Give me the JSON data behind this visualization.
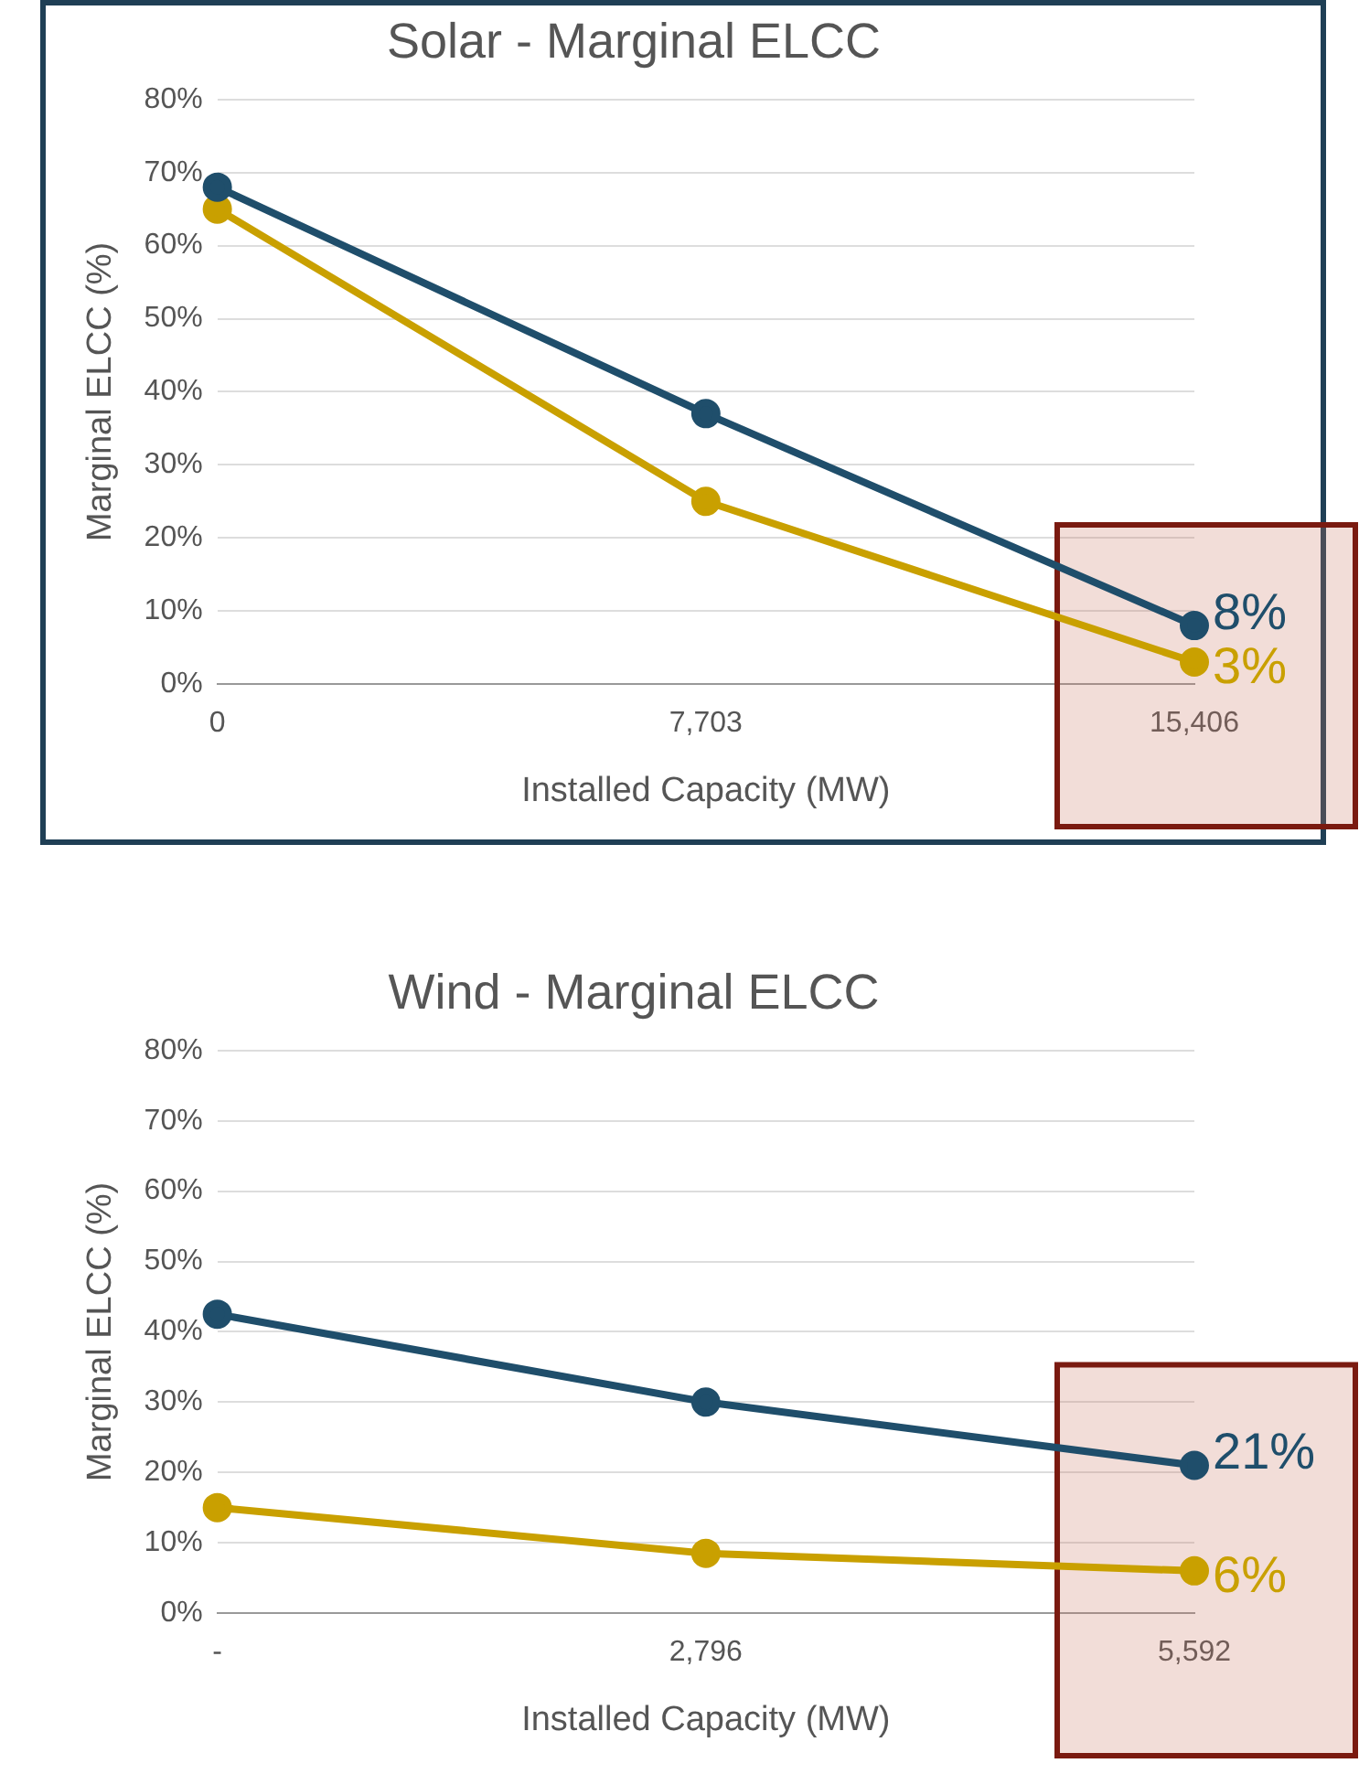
{
  "chart_data": [
    {
      "type": "line",
      "title": "Solar - Marginal ELCC",
      "xlabel": "Installed Capacity (MW)",
      "ylabel": "Marginal ELCC (%)",
      "categories": [
        "0",
        "7,703",
        "15,406"
      ],
      "series": [
        {
          "color": "#1f4e6b",
          "values": [
            68,
            37,
            8
          ],
          "value_labels": [
            null,
            null,
            "8%"
          ]
        },
        {
          "color": "#c9a000",
          "values": [
            65,
            25,
            3
          ],
          "value_labels": [
            null,
            null,
            "3%"
          ]
        }
      ],
      "ylim": [
        0,
        80
      ],
      "yticks": [
        {
          "value": 0,
          "label": "0%"
        },
        {
          "value": 10,
          "label": "10%"
        },
        {
          "value": 20,
          "label": "20%"
        },
        {
          "value": 30,
          "label": "30%"
        },
        {
          "value": 40,
          "label": "40%"
        },
        {
          "value": 50,
          "label": "50%"
        },
        {
          "value": 60,
          "label": "60%"
        },
        {
          "value": 70,
          "label": "70%"
        },
        {
          "value": 80,
          "label": "80%"
        }
      ],
      "bands": [
        {
          "axis": "x",
          "from": "15,406",
          "to": "15,406",
          "color": "#cd7864"
        }
      ],
      "grid": "y",
      "legend": false,
      "marker": "circle",
      "line_style": "solid"
    },
    {
      "type": "line",
      "title": "Wind - Marginal ELCC",
      "xlabel": "Installed Capacity (MW)",
      "ylabel": "Marginal ELCC (%)",
      "categories": [
        "-",
        "2,796",
        "5,592"
      ],
      "series": [
        {
          "color": "#1f4e6b",
          "values": [
            42.5,
            30,
            21
          ],
          "value_labels": [
            null,
            null,
            "21%"
          ]
        },
        {
          "color": "#c9a000",
          "values": [
            15,
            8.5,
            6
          ],
          "value_labels": [
            null,
            null,
            "6%"
          ]
        }
      ],
      "ylim": [
        0,
        80
      ],
      "yticks": [
        {
          "value": 0,
          "label": "0%"
        },
        {
          "value": 10,
          "label": "10%"
        },
        {
          "value": 20,
          "label": "20%"
        },
        {
          "value": 30,
          "label": "30%"
        },
        {
          "value": 40,
          "label": "40%"
        },
        {
          "value": 50,
          "label": "50%"
        },
        {
          "value": 60,
          "label": "60%"
        },
        {
          "value": 70,
          "label": "70%"
        },
        {
          "value": 80,
          "label": "80%"
        }
      ],
      "bands": [
        {
          "axis": "x",
          "from": "5,592",
          "to": "5,592",
          "color": "#cd7864"
        }
      ],
      "grid": "y",
      "legend": false,
      "marker": "circle",
      "line_style": "solid"
    }
  ]
}
